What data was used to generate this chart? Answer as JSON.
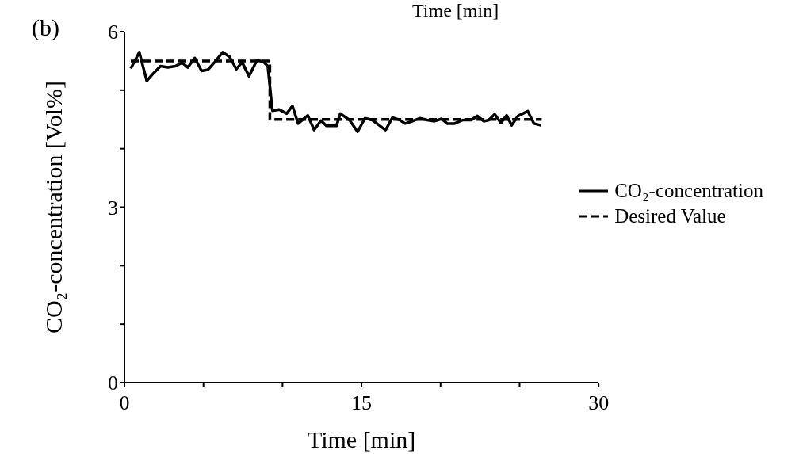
{
  "chart_data": {
    "type": "line",
    "xlabel": "Time [min]",
    "ylabel": "CO₂-concentration [Vol%]",
    "annotations": [
      "(b)",
      "Time [min]"
    ],
    "xlim": [
      0,
      30
    ],
    "xticks": [
      0,
      {
        "value": 5,
        "label": null
      },
      {
        "value": 10,
        "label": null
      },
      15,
      {
        "value": 20,
        "label": null
      },
      {
        "value": 25,
        "label": null
      },
      30
    ],
    "ylim": [
      0,
      6
    ],
    "yticks": [
      0,
      {
        "value": 1,
        "label": null
      },
      {
        "value": 2,
        "label": null
      },
      3,
      {
        "value": 4,
        "label": null
      },
      {
        "value": 5,
        "label": null
      },
      6
    ],
    "legend": "right",
    "marker": "none",
    "series": [
      {
        "name": "CO₂-concentration",
        "color": "#000000",
        "line_style": "solid",
        "x": [
          0.4,
          0.94,
          1.41,
          1.84,
          2.28,
          2.75,
          3.22,
          3.65,
          4.01,
          4.45,
          4.88,
          5.28,
          5.71,
          6.22,
          6.65,
          7.08,
          7.44,
          7.88,
          8.38,
          8.78,
          9.07,
          9.36,
          9.79,
          10.26,
          10.63,
          10.99,
          11.6,
          12.0,
          12.43,
          12.79,
          13.41,
          13.66,
          14.24,
          14.75,
          15.22,
          15.68,
          16.12,
          16.52,
          16.95,
          17.42,
          17.75,
          18.21,
          18.68,
          19.15,
          19.62,
          20.06,
          20.42,
          20.89,
          21.4,
          21.94,
          22.33,
          22.73,
          23.06,
          23.42,
          23.82,
          24.18,
          24.5,
          24.9,
          25.52,
          25.91,
          26.35
        ],
        "values": [
          5.37,
          5.65,
          5.16,
          5.29,
          5.41,
          5.39,
          5.41,
          5.47,
          5.39,
          5.55,
          5.33,
          5.35,
          5.48,
          5.65,
          5.57,
          5.36,
          5.48,
          5.24,
          5.51,
          5.49,
          5.41,
          4.65,
          4.67,
          4.6,
          4.73,
          4.43,
          4.57,
          4.32,
          4.48,
          4.39,
          4.39,
          4.6,
          4.49,
          4.29,
          4.52,
          4.49,
          4.4,
          4.32,
          4.53,
          4.49,
          4.43,
          4.47,
          4.52,
          4.49,
          4.47,
          4.51,
          4.43,
          4.43,
          4.49,
          4.49,
          4.56,
          4.47,
          4.49,
          4.59,
          4.44,
          4.57,
          4.4,
          4.56,
          4.64,
          4.43,
          4.4
        ]
      },
      {
        "name": "Desired Value",
        "color": "#000000",
        "line_style": "dashed",
        "x": [
          0.4,
          9.2,
          9.2,
          26.4
        ],
        "values": [
          5.5,
          5.5,
          4.5,
          4.5
        ]
      }
    ]
  }
}
